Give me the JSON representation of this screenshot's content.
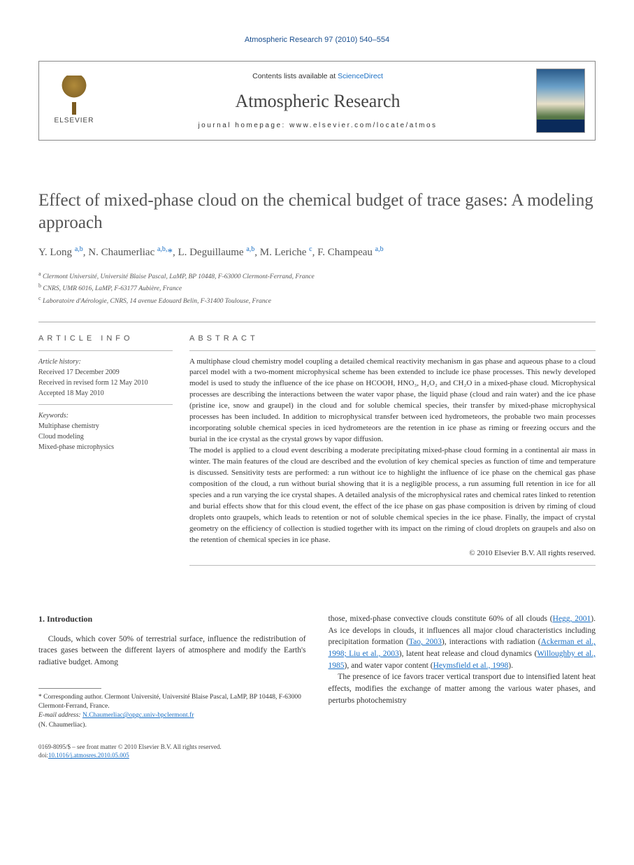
{
  "running_head": "Atmospheric Research 97 (2010) 540–554",
  "masthead": {
    "contents_prefix": "Contents lists available at ",
    "contents_link": "ScienceDirect",
    "journal": "Atmospheric Research",
    "homepage_prefix": "journal homepage: ",
    "homepage_url": "www.elsevier.com/locate/atmos",
    "publisher_word": "ELSEVIER"
  },
  "title": "Effect of mixed-phase cloud on the chemical budget of trace gases: A modeling approach",
  "authors_html": "Y. Long <sup>a,b</sup>, N. Chaumerliac <sup>a,b,</sup><span class='star'>*</span>, L. Deguillaume <sup>a,b</sup>, M. Leriche <sup>c</sup>, F. Champeau <sup>a,b</sup>",
  "affiliations": [
    {
      "key": "a",
      "text": "Clermont Université, Université Blaise Pascal, LaMP, BP 10448, F-63000 Clermont-Ferrand, France"
    },
    {
      "key": "b",
      "text": "CNRS, UMR 6016, LaMP, F-63177 Aubière, France"
    },
    {
      "key": "c",
      "text": "Laboratoire d'Aérologie, CNRS, 14 avenue Edouard Belin, F-31400 Toulouse, France"
    }
  ],
  "info": {
    "head": "ARTICLE INFO",
    "history_label": "Article history:",
    "history": [
      "Received 17 December 2009",
      "Received in revised form 12 May 2010",
      "Accepted 18 May 2010"
    ],
    "keywords_label": "Keywords:",
    "keywords": [
      "Multiphase chemistry",
      "Cloud modeling",
      "Mixed-phase microphysics"
    ]
  },
  "abstract": {
    "head": "ABSTRACT",
    "paras": [
      "A multiphase cloud chemistry model coupling a detailed chemical reactivity mechanism in gas phase and aqueous phase to a cloud parcel model with a two-moment microphysical scheme has been extended to include ice phase processes. This newly developed model is used to study the influence of the ice phase on HCOOH, HNO₃, H₂O₂ and CH₂O in a mixed-phase cloud. Microphysical processes are describing the interactions between the water vapor phase, the liquid phase (cloud and rain water) and the ice phase (pristine ice, snow and graupel) in the cloud and for soluble chemical species, their transfer by mixed-phase microphysical processes has been included. In addition to microphysical transfer between iced hydrometeors, the probable two main processes incorporating soluble chemical species in iced hydrometeors are the retention in ice phase as riming or freezing occurs and the burial in the ice crystal as the crystal grows by vapor diffusion.",
      "The model is applied to a cloud event describing a moderate precipitating mixed-phase cloud forming in a continental air mass in winter. The main features of the cloud are described and the evolution of key chemical species as function of time and temperature is discussed. Sensitivity tests are performed: a run without ice to highlight the influence of ice phase on the chemical gas phase composition of the cloud, a run without burial showing that it is a negligible process, a run assuming full retention in ice for all species and a run varying the ice crystal shapes. A detailed analysis of the microphysical rates and chemical rates linked to retention and burial effects show that for this cloud event, the effect of the ice phase on gas phase composition is driven by riming of cloud droplets onto graupels, which leads to retention or not of soluble chemical species in the ice phase. Finally, the impact of crystal geometry on the efficiency of collection is studied together with its impact on the riming of cloud droplets on graupels and also on the retention of chemical species in ice phase."
    ],
    "copyright": "© 2010 Elsevier B.V. All rights reserved."
  },
  "section1": {
    "head": "1. Introduction",
    "left_para": "Clouds, which cover 50% of terrestrial surface, influence the redistribution of traces gases between the different layers of atmosphere and modify the Earth's radiative budget. Among",
    "right_para1_pre": "those, mixed-phase convective clouds constitute 60% of all clouds (",
    "right_para1_link1": "Hegg, 2001",
    "right_para1_mid1": "). As ice develops in clouds, it influences all major cloud characteristics including precipitation formation (",
    "right_para1_link2": "Tao, 2003",
    "right_para1_mid2": "), interactions with radiation (",
    "right_para1_link3": "Ackerman et al., 1998; Liu et al., 2003",
    "right_para1_mid3": "), latent heat release and cloud dynamics (",
    "right_para1_link4": "Willoughby et al., 1985",
    "right_para1_mid4": "), and water vapor content (",
    "right_para1_link5": "Heymsfield et al., 1998",
    "right_para1_end": ").",
    "right_para2": "The presence of ice favors tracer vertical transport due to intensified latent heat effects, modifies the exchange of matter among the various water phases, and perturbs photochemistry"
  },
  "footnotes": {
    "corr": "* Corresponding author. Clermont Université, Université Blaise Pascal, LaMP, BP 10448, F-63000 Clermont-Ferrand, France.",
    "email_label": "E-mail address: ",
    "email": "N.Chaumerliac@opgc.univ-bpclermont.fr",
    "email_who": "(N. Chaumerliac)."
  },
  "bottom": {
    "line1": "0169-8095/$ – see front matter © 2010 Elsevier B.V. All rights reserved.",
    "line2_pre": "doi:",
    "doi": "10.1016/j.atmosres.2010.05.005"
  },
  "colors": {
    "link": "#1a6fc4",
    "headline": "#555555",
    "rule": "#aaaaaa"
  }
}
